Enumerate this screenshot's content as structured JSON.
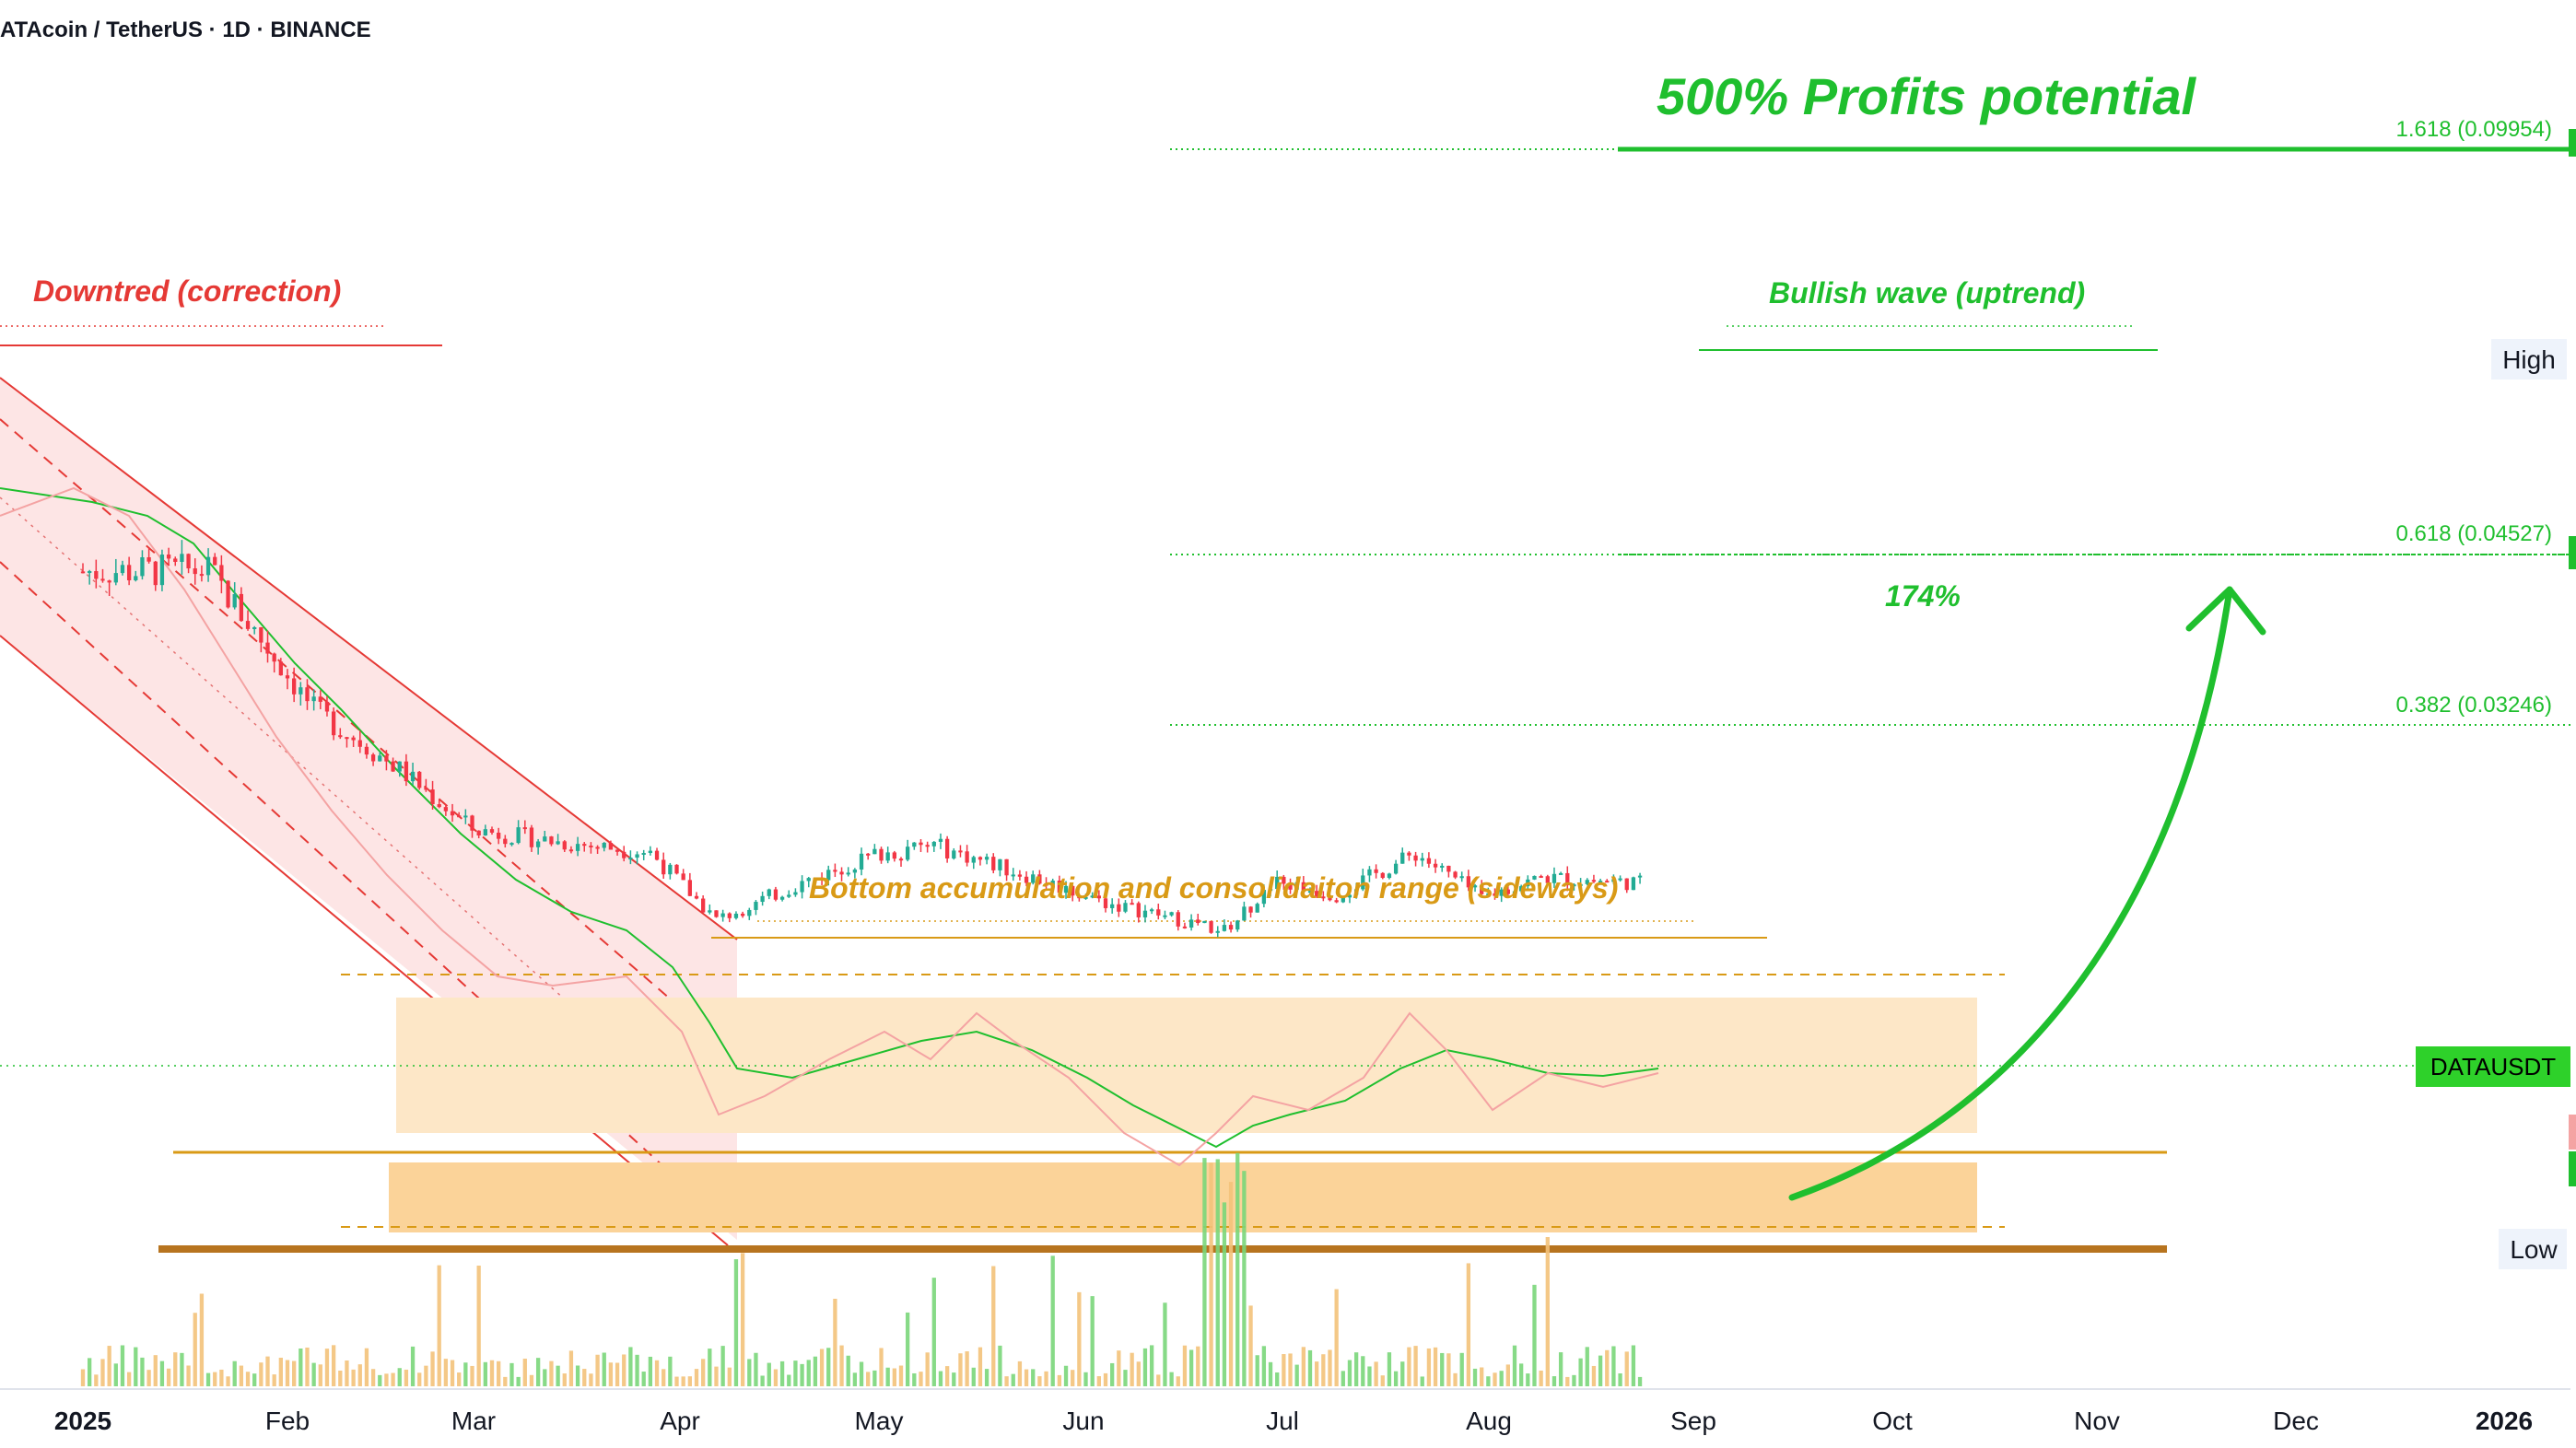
{
  "header": {
    "symbol_title": "ATAcoin / TetherUS · 1D · BINANCE"
  },
  "colors": {
    "up": "#22ab94",
    "down": "#f23645",
    "green": "#1fbf2e",
    "red": "#e53935",
    "orange": "#d99a16",
    "brown": "#b7741f",
    "range_fill_light": "#fde7c7",
    "range_fill_dark": "#fbd399",
    "channel_fill": "#fcdcdc"
  },
  "annotations": {
    "profit_title": "500% Profits potential",
    "downtrend": "Downtred (correction)",
    "bullish": "Bullish wave (uptrend)",
    "accumulation": "Bottom accumulation and consolidaiton range (sideways)",
    "pct": "174%"
  },
  "price_axis": {
    "fib_1618": "1.618 (0.09954)",
    "fib_0618": "0.618 (0.04527)",
    "fib_0382": "0.382 (0.03246)",
    "high": "High",
    "low": "Low",
    "symbol_badge": "DATAUSDT"
  },
  "time_axis": {
    "labels": [
      "2025",
      "Feb",
      "Mar",
      "Apr",
      "May",
      "Jun",
      "Jul",
      "Aug",
      "Sep",
      "Oct",
      "Nov",
      "Dec",
      "2026"
    ],
    "bold": [
      true,
      false,
      false,
      false,
      false,
      false,
      false,
      false,
      false,
      false,
      false,
      false,
      true
    ]
  },
  "chart_data": {
    "type": "candlestick",
    "symbol": "DATAUSDT",
    "interval": "1D",
    "exchange": "BINANCE",
    "fib_levels": [
      {
        "ratio": 1.618,
        "price": 0.09954
      },
      {
        "ratio": 0.618,
        "price": 0.04527
      },
      {
        "ratio": 0.382,
        "price": 0.03246
      }
    ],
    "x_range": [
      "2025-01-01",
      "2026-01-01"
    ],
    "close_anchors": [
      {
        "date": "2025-01-01",
        "close": 0.044
      },
      {
        "date": "2025-01-20",
        "close": 0.0441
      },
      {
        "date": "2025-02-05",
        "close": 0.0336
      },
      {
        "date": "2025-02-18",
        "close": 0.0291
      },
      {
        "date": "2025-03-01",
        "close": 0.0246
      },
      {
        "date": "2025-03-15",
        "close": 0.0236
      },
      {
        "date": "2025-03-28",
        "close": 0.0229
      },
      {
        "date": "2025-04-07",
        "close": 0.0178
      },
      {
        "date": "2025-04-20",
        "close": 0.0206
      },
      {
        "date": "2025-05-01",
        "close": 0.0227
      },
      {
        "date": "2025-05-10",
        "close": 0.0234
      },
      {
        "date": "2025-05-25",
        "close": 0.021
      },
      {
        "date": "2025-06-05",
        "close": 0.0191
      },
      {
        "date": "2025-06-12",
        "close": 0.0183
      },
      {
        "date": "2025-06-23",
        "close": 0.017
      },
      {
        "date": "2025-07-01",
        "close": 0.0206
      },
      {
        "date": "2025-07-10",
        "close": 0.0197
      },
      {
        "date": "2025-07-22",
        "close": 0.0228
      },
      {
        "date": "2025-08-01",
        "close": 0.0195
      },
      {
        "date": "2025-08-10",
        "close": 0.021
      },
      {
        "date": "2025-08-25",
        "close": 0.0206
      }
    ]
  }
}
